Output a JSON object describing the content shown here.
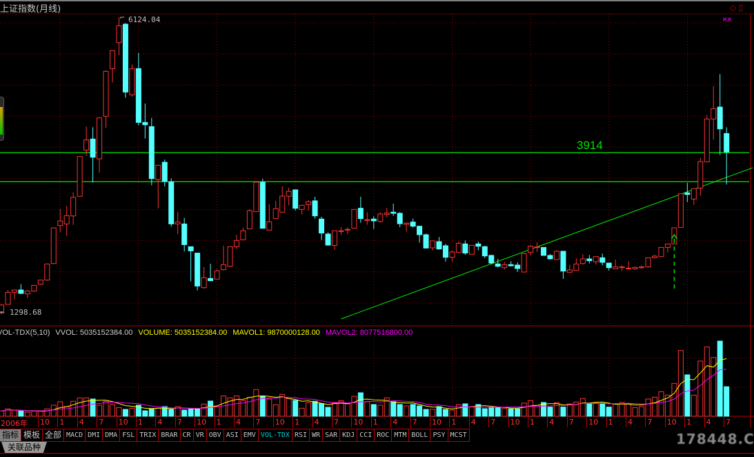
{
  "window": {
    "title": "上证指数(月线)"
  },
  "colors": {
    "up": "#ff3232",
    "down": "#54ffff",
    "grid": "#a00000",
    "mavol1": "#ffff00",
    "mavol2": "#ff00ff",
    "level_line": "#00ee00"
  },
  "price_panel": {
    "high_label": "6124.04",
    "low_label": "1298.68",
    "low_arrow": "←",
    "level_lines": [
      {
        "price": 3914,
        "label": "3914"
      },
      {
        "price": 3440
      }
    ],
    "trend_line": {
      "from": [
        "2010-08",
        1199
      ],
      "to": [
        "2015-11",
        3667
      ]
    },
    "signal_marker": {
      "month": "2014-11",
      "icon": "arrow-up-icon"
    },
    "corner_marks": "××",
    "icons": [
      "diamond-icon",
      "window-icon"
    ]
  },
  "volume_panel": {
    "indicator": "VOL-TDX(5,10)",
    "vvol": "VVOL: 5035152384.00",
    "volume": "VOLUME: 5035152384.00",
    "mavol1": "MAVOL1: 9870000128.00",
    "mavol2": "MAVOL2: 8077516800.00"
  },
  "candles": [
    [
      1315,
      1438,
      1296,
      1427,
      900000000.0
    ],
    [
      1438,
      1672,
      1438,
      1634,
      1260000000.0
    ],
    [
      1634,
      1679,
      1521,
      1672,
      1020000000.0
    ],
    [
      1672,
      1766,
      1615,
      1615,
      900000000.0
    ],
    [
      1608,
      1672,
      1540,
      1653,
      700000000.0
    ],
    [
      1653,
      1755,
      1642,
      1747,
      870000000.0
    ],
    [
      1766,
      1841,
      1755,
      1833,
      870000000.0
    ],
    [
      1833,
      2104,
      1822,
      2096,
      1260000000.0
    ],
    [
      2104,
      2690,
      2096,
      2686,
      1880000000.0
    ],
    [
      2724,
      2994,
      2618,
      2799,
      2470000000.0
    ],
    [
      2750,
      3043,
      2555,
      2885,
      1650000000.0
    ],
    [
      2881,
      3268,
      2735,
      3186,
      2550000000.0
    ],
    [
      3201,
      3851,
      3201,
      3851,
      3130000000.0
    ],
    [
      3956,
      4339,
      3862,
      4121,
      3130000000.0
    ],
    [
      4136,
      4328,
      3426,
      3839,
      2940000000.0
    ],
    [
      3813,
      4482,
      3588,
      4482,
      1880000000.0
    ],
    [
      4508,
      5260,
      4320,
      5241,
      2550000000.0
    ],
    [
      5286,
      5579,
      5060,
      5579,
      1960000000.0
    ],
    [
      5710,
      6124,
      5504,
      5985,
      1490000000.0
    ],
    [
      6011,
      6030,
      4809,
      4903,
      1170000000.0
    ],
    [
      4858,
      5353,
      4827,
      5286,
      1370000000.0
    ],
    [
      5286,
      5541,
      4358,
      4407,
      1880000000.0
    ],
    [
      4407,
      4715,
      4144,
      4369,
      940000000.0
    ],
    [
      4339,
      4482,
      3381,
      3490,
      1260000000.0
    ],
    [
      3475,
      3708,
      3005,
      3708,
      1370000000.0
    ],
    [
      3757,
      3802,
      3362,
      3445,
      1650000000.0
    ],
    [
      3437,
      3494,
      2705,
      2750,
      1170000000.0
    ],
    [
      2750,
      2949,
      2581,
      2780,
      1650000000.0
    ],
    [
      2750,
      2848,
      2299,
      2412,
      1060000000.0
    ],
    [
      2378,
      2378,
      1814,
      2310,
      1260000000.0
    ],
    [
      2274,
      2274,
      1665,
      1736,
      1260000000.0
    ],
    [
      1710,
      2048,
      1691,
      1872,
      2080000000.0
    ],
    [
      1860,
      2101,
      1823,
      1823,
      2590000000.0
    ],
    [
      1849,
      2011,
      1842,
      1984,
      1650000000.0
    ],
    [
      2003,
      2394,
      1992,
      2086,
      3470000000.0
    ],
    [
      2059,
      2379,
      2048,
      2379,
      3130000000.0
    ],
    [
      2379,
      2574,
      2341,
      2480,
      3470000000.0
    ],
    [
      2492,
      2687,
      2492,
      2638,
      2650000000.0
    ],
    [
      2668,
      2987,
      2668,
      2965,
      3250000000.0
    ],
    [
      2950,
      3450,
      2950,
      3431,
      4550000000.0
    ],
    [
      3431,
      3487,
      2679,
      2679,
      3470000000.0
    ],
    [
      2649,
      3070,
      2649,
      2785,
      2940000000.0
    ],
    [
      2837,
      3127,
      2837,
      2999,
      1960000000.0
    ],
    [
      2942,
      3363,
      2942,
      3205,
      3720000000.0
    ],
    [
      3202,
      3344,
      3051,
      3281,
      3020000000.0
    ],
    [
      3307,
      3307,
      2969,
      3006,
      2700000000.0
    ],
    [
      2987,
      3055,
      2905,
      3055,
      1370000000.0
    ],
    [
      3066,
      3138,
      2969,
      3111,
      2310000000.0
    ],
    [
      3127,
      3194,
      2837,
      2882,
      2550000000.0
    ],
    [
      2830,
      2867,
      2488,
      2601,
      2160000000.0
    ],
    [
      2585,
      2612,
      2394,
      2405,
      1530000000.0
    ],
    [
      2398,
      2638,
      2330,
      2638,
      2240000000.0
    ],
    [
      2638,
      2698,
      2574,
      2638,
      2650000000.0
    ],
    [
      2649,
      2698,
      2585,
      2661,
      2120000000.0
    ],
    [
      2679,
      2990,
      2679,
      2987,
      3400000000.0
    ],
    [
      3006,
      3194,
      2770,
      2837,
      4000000000.0
    ],
    [
      2819,
      2942,
      2736,
      2819,
      2470000000.0
    ],
    [
      2830,
      2875,
      2668,
      2800,
      2000000000.0
    ],
    [
      2792,
      2942,
      2769,
      2912,
      1880000000.0
    ],
    [
      2905,
      3014,
      2856,
      2927,
      3130000000.0
    ],
    [
      2942,
      3081,
      2882,
      2923,
      2470000000.0
    ],
    [
      2923,
      2942,
      2698,
      2754,
      2000000000.0
    ],
    [
      2743,
      2773,
      2623,
      2762,
      1760000000.0
    ],
    [
      2781,
      2837,
      2694,
      2713,
      2000000000.0
    ],
    [
      2713,
      2713,
      2443,
      2574,
      1760000000.0
    ],
    [
      2574,
      2593,
      2349,
      2356,
      1170000000.0
    ],
    [
      2360,
      2480,
      2319,
      2473,
      1170000000.0
    ],
    [
      2461,
      2536,
      2330,
      2341,
      1650000000.0
    ],
    [
      2394,
      2424,
      2135,
      2206,
      1170000000.0
    ],
    [
      2206,
      2319,
      2135,
      2292,
      1060000000.0
    ],
    [
      2285,
      2461,
      2285,
      2435,
      1960000000.0
    ],
    [
      2424,
      2480,
      2247,
      2274,
      2120000000.0
    ],
    [
      2255,
      2401,
      2255,
      2401,
      1650000000.0
    ],
    [
      2424,
      2461,
      2319,
      2386,
      2000000000.0
    ],
    [
      2379,
      2394,
      2191,
      2228,
      1290000000.0
    ],
    [
      2236,
      2247,
      2093,
      2112,
      1490000000.0
    ],
    [
      2097,
      2180,
      2041,
      2059,
      1490000000.0
    ],
    [
      2037,
      2131,
      2003,
      2086,
      1370000000.0
    ],
    [
      2086,
      2142,
      2056,
      2067,
      1260000000.0
    ],
    [
      2078,
      2123,
      1965,
      2022,
      1260000000.0
    ],
    [
      1965,
      2274,
      1958,
      2266,
      2240000000.0
    ],
    [
      2285,
      2405,
      2236,
      2386,
      2650000000.0
    ],
    [
      2375,
      2450,
      2292,
      2375,
      1880000000.0
    ],
    [
      2367,
      2367,
      2236,
      2236,
      2350000000.0
    ],
    [
      2236,
      2255,
      2168,
      2180,
      1570000000.0
    ],
    [
      2168,
      2322,
      2168,
      2304,
      2310000000.0
    ],
    [
      2304,
      2304,
      1853,
      1980,
      1570000000.0
    ],
    [
      1961,
      2085,
      1961,
      1999,
      2080000000.0
    ],
    [
      1991,
      2190,
      1991,
      2096,
      2430000000.0
    ],
    [
      2104,
      2254,
      2085,
      2179,
      3020000000.0
    ],
    [
      2179,
      2243,
      2104,
      2149,
      2120000000.0
    ],
    [
      2134,
      2217,
      2085,
      2217,
      2270000000.0
    ],
    [
      2198,
      2266,
      2074,
      2123,
      2200000000.0
    ],
    [
      2111,
      2111,
      1991,
      2036,
      1570000000.0
    ],
    [
      2018,
      2168,
      2018,
      2048,
      2080000000.0
    ],
    [
      2048,
      2074,
      1984,
      2048,
      2350000000.0
    ],
    [
      2029,
      2142,
      2003,
      2029,
      2120000000.0
    ],
    [
      2018,
      2055,
      1999,
      2040,
      1490000000.0
    ],
    [
      2036,
      2074,
      2018,
      2048,
      1650000000.0
    ],
    [
      2048,
      2198,
      2036,
      2198,
      2940000000.0
    ],
    [
      2198,
      2247,
      2187,
      2224,
      3250000000.0
    ],
    [
      2217,
      2367,
      2217,
      2367,
      4190000000.0
    ],
    [
      2367,
      2423,
      2284,
      2423,
      3600000000.0
    ],
    [
      2423,
      2686,
      2423,
      2686,
      5600000000.0
    ],
    [
      2694,
      3243,
      2694,
      3242,
      11200000000.0
    ],
    [
      3257,
      3419,
      3107,
      3231,
      7050000000.0
    ],
    [
      3156,
      3325,
      3062,
      3325,
      3600000000.0
    ],
    [
      3336,
      3832,
      3212,
      3768,
      9400000000.0
    ],
    [
      3764,
      4527,
      3764,
      4463,
      11800000000.0
    ],
    [
      4463,
      4996,
      4125,
      4632,
      10000000000.0
    ],
    [
      4658,
      5195,
      3877,
      4302,
      12800000000.0
    ],
    [
      4226,
      4328,
      3392,
      3926,
      5035152384
    ]
  ],
  "x_axis": [
    "2006年",
    "10",
    "1",
    "4",
    "7",
    "10",
    "1",
    "4",
    "7",
    "10",
    "1",
    "4",
    "7",
    "10",
    "1",
    "4",
    "7",
    "10",
    "1",
    "4",
    "7",
    "10",
    "1",
    "4",
    "7",
    "10",
    "1",
    "4",
    "7",
    "10",
    "1",
    "4",
    "7",
    "10",
    "1",
    "4",
    "7"
  ],
  "tabs": [
    {
      "label": "指标",
      "state": "selected"
    },
    {
      "label": "模板"
    },
    {
      "label": "全部"
    },
    {
      "label": "MACD"
    },
    {
      "label": "DMI"
    },
    {
      "label": "DMA"
    },
    {
      "label": "FSL"
    },
    {
      "label": "TRIX"
    },
    {
      "label": "BRAR"
    },
    {
      "label": "CR"
    },
    {
      "label": "VR"
    },
    {
      "label": "OBV"
    },
    {
      "label": "ASI"
    },
    {
      "label": "EMV"
    },
    {
      "label": "VOL-TDX",
      "state": "active"
    },
    {
      "label": "RSI"
    },
    {
      "label": "WR"
    },
    {
      "label": "SAR"
    },
    {
      "label": "KDJ"
    },
    {
      "label": "CCI"
    },
    {
      "label": "ROC"
    },
    {
      "label": "MTM"
    },
    {
      "label": "BOLL"
    },
    {
      "label": "PSY"
    },
    {
      "label": "MCST"
    }
  ],
  "related_tab": "关联品种",
  "watermark": "178448.COM"
}
